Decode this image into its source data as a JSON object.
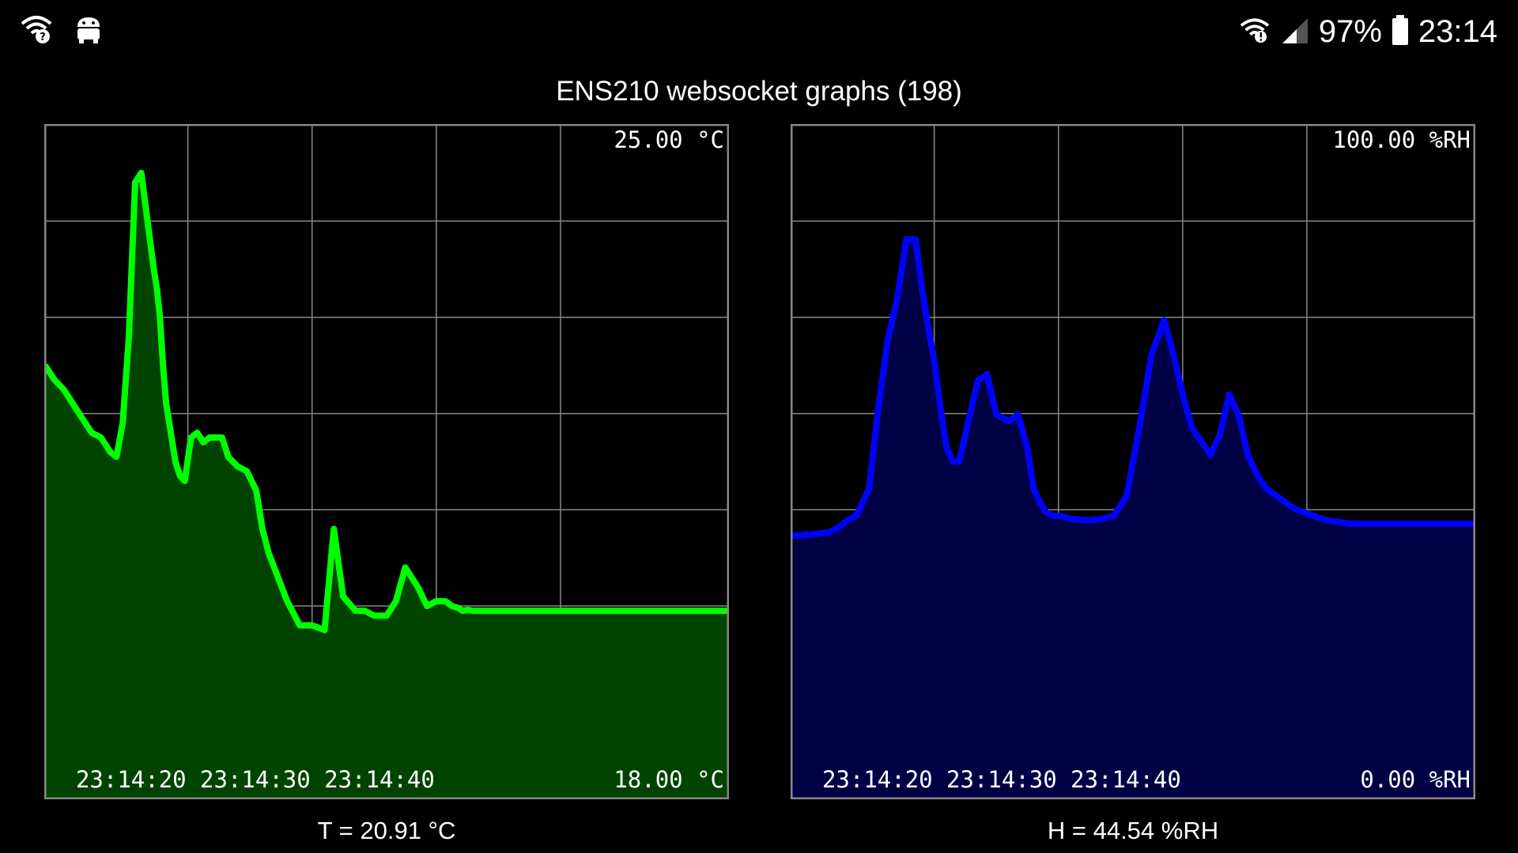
{
  "status_bar": {
    "battery": "97%",
    "time": "23:14",
    "left_icons": [
      "wifi-help-icon",
      "android-debug-icon"
    ],
    "right_icons": [
      "wifi-alert-icon",
      "signal-icon",
      "battery-icon"
    ]
  },
  "page": {
    "title": "ENS210 websocket graphs (198)"
  },
  "colors": {
    "temp_line": "#00ff00",
    "temp_fill": "#004400",
    "hum_line": "#0000ff",
    "hum_fill": "#000044",
    "grid": "#888888",
    "border": "#888888"
  },
  "chart_data": [
    {
      "type": "area",
      "ymax_label": "25.00 °C",
      "ymin_label": "18.00 °C",
      "ylim": [
        18,
        25
      ],
      "xlim": [
        0,
        22
      ],
      "x_tick_labels": [
        "23:14:20",
        "23:14:30",
        "23:14:40"
      ],
      "x_tick_values": [
        4.6,
        8.6,
        12.6
      ],
      "grid": true,
      "x": [
        0,
        0.3,
        0.6,
        0.9,
        1.2,
        1.5,
        1.8,
        2.1,
        2.3,
        2.5,
        2.7,
        2.9,
        3.1,
        3.3,
        3.5,
        3.6,
        3.7,
        3.8,
        3.9,
        4.0,
        4.1,
        4.2,
        4.35,
        4.5,
        4.7,
        4.9,
        5.1,
        5.3,
        5.5,
        5.7,
        5.9,
        6.2,
        6.5,
        6.8,
        7.0,
        7.2,
        7.5,
        7.8,
        8.2,
        8.6,
        9.0,
        9.3,
        9.6,
        10.0,
        10.3,
        10.6,
        11.0,
        11.3,
        11.6,
        12.0,
        12.3,
        12.6,
        12.9,
        13.1,
        13.3,
        13.45,
        13.6,
        13.8,
        14.0,
        14.3,
        14.6,
        14.9,
        15.2,
        15.5,
        15.8,
        16.0,
        16.2,
        16.4,
        16.6,
        16.9,
        17.2,
        17.6,
        18.0,
        18.4,
        18.8,
        19.2,
        19.6,
        20.0,
        20.4,
        20.8,
        21.2,
        21.6,
        22.0
      ],
      "y": [
        22.5,
        22.35,
        22.25,
        22.1,
        21.95,
        21.8,
        21.75,
        21.6,
        21.55,
        21.9,
        22.8,
        24.4,
        24.5,
        24.0,
        23.5,
        23.3,
        23.0,
        22.5,
        22.1,
        21.9,
        21.7,
        21.5,
        21.35,
        21.3,
        21.75,
        21.8,
        21.7,
        21.75,
        21.75,
        21.75,
        21.55,
        21.45,
        21.4,
        21.2,
        20.8,
        20.55,
        20.3,
        20.05,
        19.8,
        19.8,
        19.75,
        20.8,
        20.1,
        19.95,
        19.95,
        19.9,
        19.9,
        20.05,
        20.4,
        20.2,
        20.0,
        20.05,
        20.05,
        20.0,
        19.98,
        19.95,
        19.96,
        19.95,
        19.95,
        19.95,
        19.95,
        19.95,
        19.95,
        19.95,
        19.95,
        19.95,
        19.95,
        19.95,
        19.95,
        19.95,
        19.95,
        19.95,
        19.95,
        19.95,
        19.95,
        19.95,
        19.95,
        19.95,
        19.95,
        19.95,
        19.95,
        19.95,
        19.95
      ]
    },
    {
      "type": "area",
      "ymax_label": "100.00 %RH",
      "ymin_label": "0.00 %RH",
      "ylim": [
        0,
        100
      ],
      "xlim": [
        0,
        22
      ],
      "x_tick_labels": [
        "23:14:20",
        "23:14:30",
        "23:14:40"
      ],
      "x_tick_values": [
        4.6,
        8.6,
        12.6
      ],
      "grid": true,
      "x": [
        0,
        0.4,
        0.8,
        1.2,
        1.5,
        1.8,
        2.1,
        2.5,
        2.8,
        3.1,
        3.4,
        3.7,
        4.0,
        4.2,
        4.4,
        4.6,
        4.8,
        5.0,
        5.2,
        5.4,
        5.6,
        5.8,
        6.0,
        6.3,
        6.6,
        7.0,
        7.3,
        7.6,
        7.8,
        8.0,
        8.2,
        8.4,
        8.7,
        9.0,
        9.3,
        9.6,
        10.0,
        10.4,
        10.8,
        11.2,
        11.6,
        12.0,
        12.3,
        12.6,
        12.9,
        13.2,
        13.5,
        13.8,
        14.1,
        14.4,
        14.7,
        15.0,
        15.3,
        15.6,
        15.9,
        16.2,
        16.5,
        16.8,
        17.1,
        17.4,
        17.7,
        18.0,
        18.4,
        18.8,
        19.2,
        19.6,
        20.0,
        20.4,
        20.8,
        21.2,
        21.6,
        22.0
      ],
      "y": [
        39,
        39.1,
        39.3,
        39.5,
        40.2,
        41.3,
        42,
        46,
        58,
        68,
        74,
        83,
        83,
        76,
        70,
        65,
        58,
        52,
        50,
        50,
        54,
        58,
        62,
        63,
        57,
        56,
        57,
        52,
        46,
        44,
        42.5,
        42,
        41.9,
        41.5,
        41.4,
        41.3,
        41.5,
        42,
        45,
        55,
        66,
        71,
        66,
        60,
        55,
        53,
        51,
        54,
        60,
        57,
        51,
        48,
        46,
        45,
        44,
        43,
        42.5,
        42,
        41.5,
        41.2,
        41,
        40.8,
        40.8,
        40.8,
        40.8,
        40.8,
        40.8,
        40.8,
        40.8,
        40.8,
        40.8,
        40.8
      ]
    }
  ],
  "readouts": {
    "temp": "T = 20.91 °C",
    "hum": "H = 44.54 %RH"
  }
}
